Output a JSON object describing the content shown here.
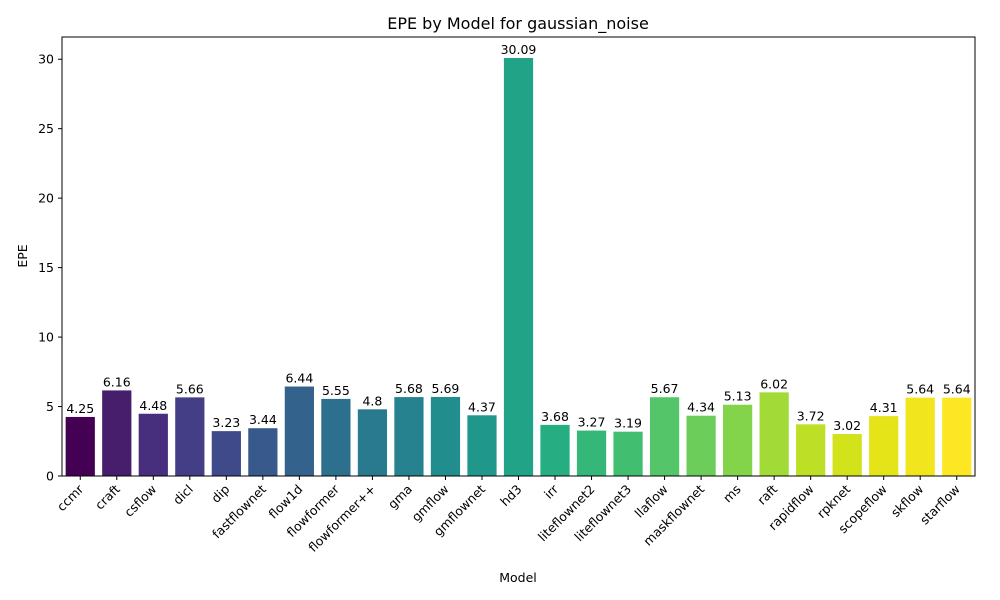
{
  "chart_data": {
    "type": "bar",
    "title": "EPE by Model for gaussian_noise",
    "xlabel": "Model",
    "ylabel": "EPE",
    "ylim": [
      0,
      31.6
    ],
    "yticks": [
      0,
      5,
      10,
      15,
      20,
      25,
      30
    ],
    "grid": false,
    "categories": [
      "ccmr",
      "craft",
      "csflow",
      "dicl",
      "dip",
      "fastflownet",
      "flow1d",
      "flowformer",
      "flowformer++",
      "gma",
      "gmflow",
      "gmflownet",
      "hd3",
      "irr",
      "liteflownet2",
      "liteflownet3",
      "llaflow",
      "maskflownet",
      "ms",
      "raft",
      "rapidflow",
      "rpknet",
      "scopeflow",
      "skflow",
      "starflow"
    ],
    "values": [
      4.25,
      6.16,
      4.48,
      5.66,
      3.23,
      3.44,
      6.44,
      5.55,
      4.8,
      5.68,
      5.69,
      4.37,
      30.09,
      3.68,
      3.27,
      3.19,
      5.67,
      4.34,
      5.13,
      6.02,
      3.72,
      3.02,
      4.31,
      5.64,
      5.64
    ],
    "value_labels": [
      "4.25",
      "6.16",
      "4.48",
      "5.66",
      "3.23",
      "3.44",
      "6.44",
      "5.55",
      "4.8",
      "5.68",
      "5.69",
      "4.37",
      "30.09",
      "3.68",
      "3.27",
      "3.19",
      "5.67",
      "4.34",
      "5.13",
      "6.02",
      "3.72",
      "3.02",
      "4.31",
      "5.64",
      "5.64"
    ],
    "colors": [
      "#440154",
      "#471e6b",
      "#472f7d",
      "#433e85",
      "#3e4a89",
      "#38598c",
      "#33638d",
      "#2d708e",
      "#297a8e",
      "#26828e",
      "#228d8d",
      "#1f978b",
      "#20a386",
      "#26ad81",
      "#35b779",
      "#42be71",
      "#54c568",
      "#6ccd5a",
      "#84d44b",
      "#a2da37",
      "#bddf26",
      "#d2e21b",
      "#e5e419",
      "#f1e51d",
      "#fde725"
    ]
  }
}
